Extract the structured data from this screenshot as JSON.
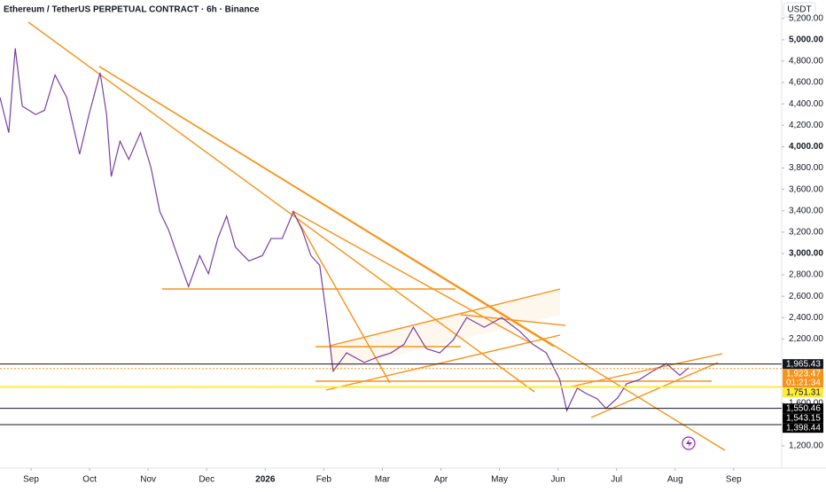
{
  "chart_data": {
    "type": "line",
    "title": "Ethereum / TetherUS PERPETUAL CONTRACT · 6h · Binance",
    "currency": "USDT",
    "x": [
      -0.53,
      -0.38,
      -0.27,
      -0.15,
      0.08,
      0.23,
      0.41,
      0.61,
      0.83,
      0.99,
      1.18,
      1.29,
      1.37,
      1.52,
      1.67,
      1.87,
      2.05,
      2.2,
      2.35,
      2.5,
      2.69,
      2.88,
      3.03,
      3.19,
      3.34,
      3.49,
      3.72,
      3.95,
      4.1,
      4.29,
      4.48,
      4.63,
      4.78,
      4.93,
      5.05,
      5.16,
      5.39,
      5.69,
      5.92,
      6.15,
      6.37,
      6.53,
      6.75,
      6.98,
      7.21,
      7.44,
      7.74,
      8.04,
      8.35,
      8.57,
      8.8,
      9.03,
      9.15,
      9.33,
      9.48,
      9.67,
      9.82,
      10.02,
      10.17,
      10.39,
      10.62,
      10.85,
      11.08,
      11.23
    ],
    "series": [
      {
        "color": "#7b3fa0",
        "values": [
          4460,
          4130,
          4920,
          4380,
          4300,
          4340,
          4670,
          4460,
          3930,
          4300,
          4690,
          4300,
          3720,
          4050,
          3880,
          4130,
          3800,
          3390,
          3220,
          2980,
          2690,
          2980,
          2810,
          3140,
          3350,
          3060,
          2930,
          2980,
          3140,
          3140,
          3390,
          3220,
          2980,
          2890,
          2400,
          1900,
          2070,
          1980,
          2030,
          2070,
          2150,
          2310,
          2110,
          2070,
          2190,
          2400,
          2310,
          2400,
          2270,
          2150,
          2070,
          1820,
          1530,
          1740,
          1690,
          1640,
          1550,
          1650,
          1780,
          1820,
          1900,
          1970,
          1860,
          1930
        ]
      }
    ],
    "xlim": [
      -0.53,
      12.82
    ],
    "xticks": [
      {
        "value": 0,
        "label": "Sep"
      },
      {
        "value": 1,
        "label": "Oct"
      },
      {
        "value": 2,
        "label": "Nov"
      },
      {
        "value": 3,
        "label": "Dec"
      },
      {
        "value": 4,
        "label": "2026"
      },
      {
        "value": 5,
        "label": "Feb"
      },
      {
        "value": 6,
        "label": "Mar"
      },
      {
        "value": 7,
        "label": "Apr"
      },
      {
        "value": 8,
        "label": "May"
      },
      {
        "value": 9,
        "label": "Jun"
      },
      {
        "value": 10,
        "label": "Jul"
      },
      {
        "value": 11,
        "label": "Aug"
      },
      {
        "value": 12,
        "label": "Sep"
      }
    ],
    "ylim": [
      992,
      5372
    ],
    "yticks": [
      {
        "value": 1200,
        "label": "1,200.00"
      },
      {
        "value": 1600,
        "label": "1,600.00"
      },
      {
        "value": 2200,
        "label": "2,200.00"
      },
      {
        "value": 2400,
        "label": "2,400.00"
      },
      {
        "value": 2600,
        "label": "2,600.00"
      },
      {
        "value": 2800,
        "label": "2,800.00"
      },
      {
        "value": 3000,
        "label": "3,000.00"
      },
      {
        "value": 3200,
        "label": "3,200.00"
      },
      {
        "value": 3400,
        "label": "3,400.00"
      },
      {
        "value": 3600,
        "label": "3,600.00"
      },
      {
        "value": 3800,
        "label": "3,800.00"
      },
      {
        "value": 4000,
        "label": "4,000.00"
      },
      {
        "value": 4200,
        "label": "4,200.00"
      },
      {
        "value": 4400,
        "label": "4,400.00"
      },
      {
        "value": 4600,
        "label": "4,600.00"
      },
      {
        "value": 4800,
        "label": "4,800.00"
      },
      {
        "value": 5000,
        "label": "5,000.00"
      },
      {
        "value": 5200,
        "label": "5,200.00"
      }
    ],
    "price_labels": [
      {
        "value": 1965.43,
        "label": "1,965.43",
        "color": "#131722",
        "line": "solid"
      },
      {
        "value": 1923.47,
        "label": "1,923.47",
        "color": "#f7931a",
        "line": "dotted",
        "countdown": "01:21:34"
      },
      {
        "value": 1751.31,
        "label": "1,751.31",
        "color": "#ffeb3b",
        "line": "thick"
      },
      {
        "value": 1550.46,
        "label": "1,550.46",
        "color": "#000000",
        "line": "solid"
      },
      {
        "value": 1543.15,
        "label": "1,543.15",
        "color": "#000000",
        "line": "none"
      },
      {
        "value": 1398.44,
        "label": "1,398.44",
        "color": "#000000",
        "line": "solid"
      }
    ]
  }
}
